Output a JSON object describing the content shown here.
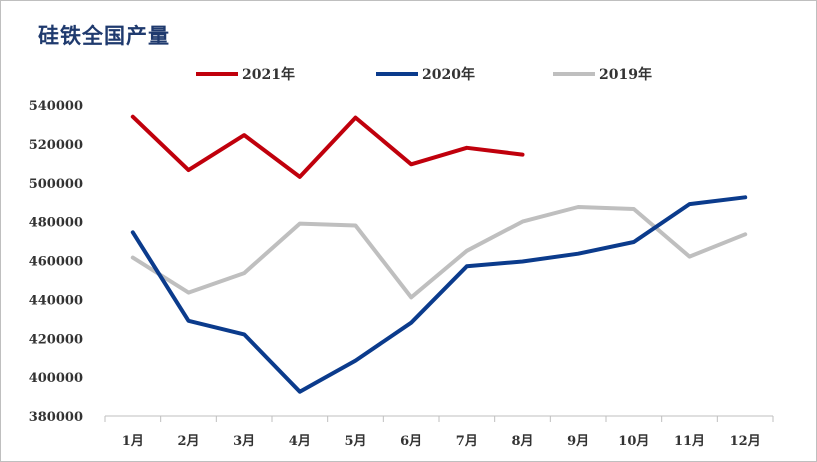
{
  "chart_data": {
    "type": "line",
    "title": "硅铁全国产量",
    "categories": [
      "1月",
      "2月",
      "3月",
      "4月",
      "5月",
      "6月",
      "7月",
      "8月",
      "9月",
      "10月",
      "11月",
      "12月"
    ],
    "ylim": [
      380000,
      540000
    ],
    "yticks": [
      540000,
      520000,
      500000,
      480000,
      460000,
      440000,
      420000,
      400000,
      380000
    ],
    "grid": false,
    "legend_position": "top",
    "series": [
      {
        "name": "2021年",
        "color": "#c0000c",
        "values": [
          534000,
          506500,
          524500,
          503000,
          533500,
          509500,
          518000,
          514500,
          null,
          null,
          null,
          null
        ]
      },
      {
        "name": "2020年",
        "color": "#0b3b8c",
        "values": [
          474500,
          429000,
          422000,
          392500,
          408500,
          428000,
          457000,
          459500,
          463500,
          469500,
          489000,
          492500
        ]
      },
      {
        "name": "2019年",
        "color": "#bfbfbf",
        "values": [
          461500,
          443500,
          453500,
          479000,
          478000,
          441000,
          465000,
          480000,
          487500,
          486500,
          462000,
          473500
        ]
      }
    ]
  }
}
